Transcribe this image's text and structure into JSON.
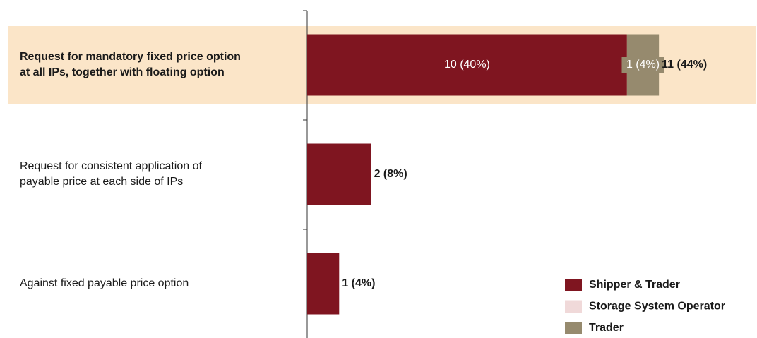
{
  "chart_data": {
    "type": "stacked-barh",
    "categories": [
      [
        "Request for mandatory fixed price option",
        "at all IPs, together with floating option"
      ],
      [
        "Request for consistent application of",
        "payable price at each side of IPs"
      ],
      [
        "Against fixed payable price option"
      ]
    ],
    "highlight": 0,
    "series": [
      {
        "name": "Shipper & Trader",
        "color": "#7f1520",
        "values": [
          10,
          2,
          1
        ],
        "value_labels": [
          "10 (40%)",
          null,
          null
        ]
      },
      {
        "name": "Storage System Operator",
        "color": "#f0d9d9",
        "values": [
          0,
          0,
          0
        ]
      },
      {
        "name": "Trader",
        "color": "#968a6e",
        "values": [
          1,
          0,
          0
        ],
        "value_labels": [
          "1 (4%)",
          null,
          null
        ]
      }
    ],
    "totals": [
      11,
      2,
      1
    ],
    "total_labels": [
      "11 (44%)",
      "2 (8%)",
      "1 (4%)"
    ],
    "xlim": [
      0,
      14
    ]
  }
}
